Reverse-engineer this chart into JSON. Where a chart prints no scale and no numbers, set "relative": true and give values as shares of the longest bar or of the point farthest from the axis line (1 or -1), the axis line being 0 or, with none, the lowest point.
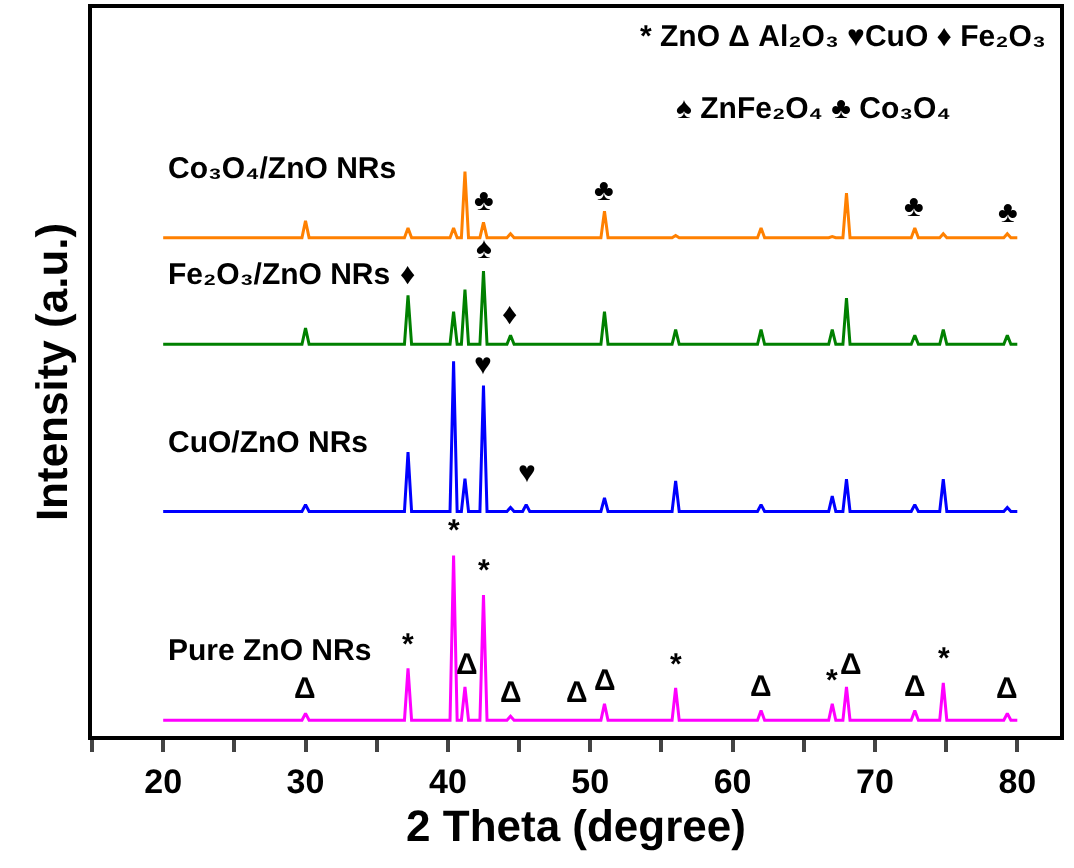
{
  "chart_data": {
    "type": "line",
    "relative": true,
    "xlabel": "2 Theta (degree)",
    "ylabel": "Intensity (a.u.)",
    "x": [
      20,
      29.75,
      30,
      30.25,
      36.95,
      37.2,
      37.45,
      40.15,
      40.4,
      40.65,
      40.95,
      41.2,
      41.45,
      42.25,
      42.5,
      42.75,
      44.15,
      44.4,
      44.65,
      45.25,
      45.5,
      45.75,
      50.75,
      51,
      51.25,
      55.75,
      56,
      56.25,
      61.75,
      62,
      62.25,
      66.75,
      67,
      67.25,
      67.75,
      68,
      68.25,
      72.55,
      72.8,
      73.05,
      74.55,
      74.8,
      75.05,
      79.05,
      79.3,
      79.55,
      80
    ],
    "xlim": [
      15,
      83
    ],
    "xticks": [
      {
        "value": 15,
        "label": null
      },
      20,
      {
        "value": 25,
        "label": null
      },
      30,
      {
        "value": 35,
        "label": null
      },
      40,
      {
        "value": 45,
        "label": null
      },
      50,
      {
        "value": 55,
        "label": null
      },
      60,
      {
        "value": 65,
        "label": null
      },
      70,
      {
        "value": 75,
        "label": null
      },
      80
    ],
    "tick_labels": "x",
    "legend": false,
    "marker": "none",
    "line_style": "solid",
    "series": [
      {
        "name": "Pure ZnO NRs",
        "color": "#ff00ff",
        "values": [
          0.028,
          0.028,
          0.04,
          0.028,
          0.028,
          0.12,
          0.028,
          0.028,
          0.32,
          0.028,
          0.028,
          0.087,
          0.028,
          0.028,
          0.25,
          0.028,
          0.028,
          0.035,
          0.028,
          0.028,
          0.028,
          0.028,
          0.028,
          0.057,
          0.028,
          0.028,
          0.085,
          0.028,
          0.028,
          0.045,
          0.028,
          0.028,
          0.057,
          0.028,
          0.028,
          0.087,
          0.028,
          0.028,
          0.045,
          0.028,
          0.028,
          0.094,
          0.028,
          0.028,
          0.04,
          0.028,
          0.028
        ]
      },
      {
        "name": "CuO/ZnO NRs",
        "color": "#0000ff",
        "values": [
          0.398,
          0.398,
          0.41,
          0.398,
          0.398,
          0.503,
          0.398,
          0.398,
          0.664,
          0.398,
          0.398,
          0.456,
          0.398,
          0.398,
          0.621,
          0.398,
          0.398,
          0.405,
          0.398,
          0.398,
          0.41,
          0.398,
          0.398,
          0.422,
          0.398,
          0.398,
          0.452,
          0.398,
          0.398,
          0.41,
          0.398,
          0.398,
          0.425,
          0.398,
          0.398,
          0.455,
          0.398,
          0.398,
          0.41,
          0.398,
          0.398,
          0.455,
          0.398,
          0.398,
          0.405,
          0.398,
          0.398
        ]
      },
      {
        "name": "Fe₂O₃/ZnO NRs",
        "color": "#008000",
        "values": [
          0.694,
          0.694,
          0.723,
          0.694,
          0.694,
          0.781,
          0.694,
          0.694,
          0.752,
          0.694,
          0.694,
          0.791,
          0.694,
          0.694,
          0.824,
          0.694,
          0.694,
          0.71,
          0.694,
          0.694,
          0.694,
          0.694,
          0.694,
          0.752,
          0.694,
          0.694,
          0.72,
          0.694,
          0.694,
          0.72,
          0.694,
          0.694,
          0.72,
          0.694,
          0.694,
          0.776,
          0.694,
          0.694,
          0.71,
          0.694,
          0.694,
          0.72,
          0.694,
          0.694,
          0.71,
          0.694,
          0.694
        ]
      },
      {
        "name": "Co₃O₄/ZnO NRs",
        "color": "#ff8000",
        "values": [
          0.883,
          0.883,
          0.913,
          0.883,
          0.883,
          0.9,
          0.883,
          0.883,
          0.9,
          0.883,
          0.883,
          1.0,
          0.883,
          0.883,
          0.91,
          0.883,
          0.883,
          0.89,
          0.883,
          0.883,
          0.883,
          0.883,
          0.883,
          0.93,
          0.883,
          0.883,
          0.887,
          0.883,
          0.883,
          0.9,
          0.883,
          0.883,
          0.885,
          0.883,
          0.883,
          0.962,
          0.883,
          0.883,
          0.9,
          0.883,
          0.883,
          0.89,
          0.883,
          0.883,
          0.89,
          0.883,
          0.883
        ]
      }
    ],
    "annotations": [
      "* ZnO Δ Al₂O₃ ♥CuO ♦ Fe₂O₃",
      "♠ ZnFe₂O₄ ♣ Co₃O₄",
      {
        "text": "Δ",
        "x": 30,
        "y": 0.045
      },
      {
        "text": "*",
        "x": 37.2,
        "y": 0.125
      },
      {
        "text": "*",
        "x": 40.4,
        "y": 0.325
      },
      {
        "text": "Δ",
        "x": 41.3,
        "y": 0.09
      },
      {
        "text": "*",
        "x": 42.5,
        "y": 0.255
      },
      {
        "text": "Δ",
        "x": 44.5,
        "y": 0.04
      },
      {
        "text": "Δ",
        "x": 49,
        "y": 0.04
      },
      {
        "text": "Δ",
        "x": 51,
        "y": 0.06
      },
      {
        "text": "*",
        "x": 56,
        "y": 0.09
      },
      {
        "text": "Δ",
        "x": 62,
        "y": 0.05
      },
      {
        "text": "*",
        "x": 67,
        "y": 0.06
      },
      {
        "text": "Δ",
        "x": 68.3,
        "y": 0.09
      },
      {
        "text": "Δ",
        "x": 72.8,
        "y": 0.05
      },
      {
        "text": "*",
        "x": 74.8,
        "y": 0.1
      },
      {
        "text": "Δ",
        "x": 79.3,
        "y": 0.045
      },
      {
        "text": "♥",
        "x": 45.6,
        "y": 0.43
      },
      {
        "text": "♥",
        "x": 42.5,
        "y": 0.621
      },
      {
        "text": "♦",
        "x": 37.2,
        "y": 0.781
      },
      {
        "text": "♦",
        "x": 44.4,
        "y": 0.71
      },
      {
        "text": "♠",
        "x": 42.5,
        "y": 0.824
      },
      {
        "text": "♣",
        "x": 42.5,
        "y": 0.91
      },
      {
        "text": "♣",
        "x": 51,
        "y": 0.93
      },
      {
        "text": "♣",
        "x": 72.8,
        "y": 0.9
      },
      {
        "text": "♣",
        "x": 79.3,
        "y": 0.89
      }
    ]
  }
}
